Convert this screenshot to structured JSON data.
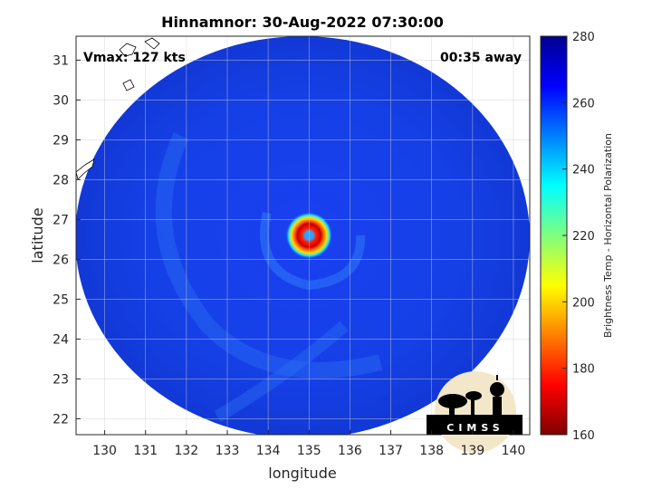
{
  "title": "Hinnamnor: 30-Aug-2022 07:30:00",
  "vmax_label": "Vmax: 127 kts",
  "time_offset_label": "00:35 away",
  "x_axis": {
    "label": "longitude",
    "min": 129.3,
    "max": 140.4,
    "ticks": [
      130,
      131,
      132,
      133,
      134,
      135,
      136,
      137,
      138,
      139,
      140
    ]
  },
  "y_axis": {
    "label": "latitude",
    "min": 21.6,
    "max": 31.6,
    "ticks": [
      22,
      23,
      24,
      25,
      26,
      27,
      28,
      29,
      30,
      31
    ]
  },
  "colorbar": {
    "label": "Brightness Temp - Horizontal Polarization",
    "min": 160,
    "max": 280,
    "ticks": [
      160,
      180,
      200,
      220,
      240,
      260,
      280
    ],
    "colormap": "jet"
  },
  "storm_center": {
    "lon": 135.0,
    "lat": 26.6
  },
  "grid": true,
  "logo_text": "CIMSS",
  "colors": {
    "background_swath": "#1540e8",
    "eyewall": "#d81010",
    "frame": "#262626"
  }
}
